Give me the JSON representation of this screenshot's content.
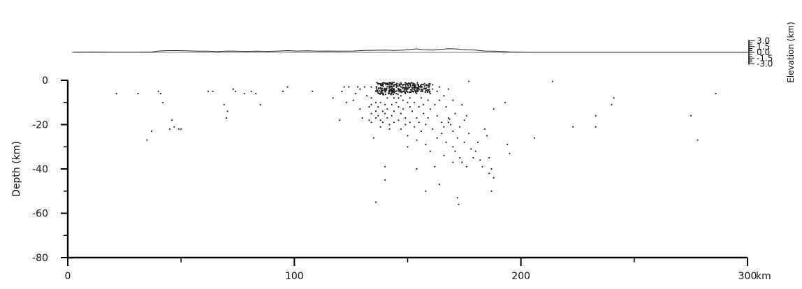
{
  "chart_data": {
    "type": "scatter",
    "title": "",
    "xlabel": "",
    "x_unit": "km",
    "ylabel": "Depth (km)",
    "xlim": [
      0,
      300
    ],
    "ylim": [
      -80,
      0
    ],
    "x_ticks_major": [
      0,
      100,
      200,
      300
    ],
    "x_ticks_minor": [
      50,
      150,
      250
    ],
    "y_ticks_major": [
      0,
      -20,
      -40,
      -60,
      -80
    ],
    "y_ticks_minor": [
      -10,
      -30,
      -50,
      -70
    ],
    "x_tick_labels": [
      "0",
      "100",
      "200",
      "300"
    ],
    "y_tick_labels": [
      "0",
      "-20",
      "-40",
      "-60",
      "-80"
    ],
    "grid": false,
    "legend": "none",
    "point_color": "#222222",
    "elevation": {
      "label": "Elevation (km)",
      "ticks": [
        "3.0",
        "1.5",
        "0.0",
        "-1.5",
        "-3.0"
      ],
      "values": [
        3.0,
        1.5,
        0.0,
        -1.5,
        -3.0
      ],
      "profile": [
        [
          2,
          0.05
        ],
        [
          10,
          0.1
        ],
        [
          20,
          0.05
        ],
        [
          30,
          0.05
        ],
        [
          37,
          0.1
        ],
        [
          40,
          0.35
        ],
        [
          44,
          0.45
        ],
        [
          48,
          0.45
        ],
        [
          52,
          0.4
        ],
        [
          57,
          0.3
        ],
        [
          62,
          0.3
        ],
        [
          66,
          0.2
        ],
        [
          70,
          0.35
        ],
        [
          74,
          0.3
        ],
        [
          78,
          0.25
        ],
        [
          84,
          0.3
        ],
        [
          88,
          0.25
        ],
        [
          93,
          0.35
        ],
        [
          97,
          0.45
        ],
        [
          101,
          0.35
        ],
        [
          106,
          0.4
        ],
        [
          110,
          0.3
        ],
        [
          115,
          0.35
        ],
        [
          120,
          0.3
        ],
        [
          126,
          0.35
        ],
        [
          131,
          0.5
        ],
        [
          136,
          0.55
        ],
        [
          140,
          0.6
        ],
        [
          144,
          0.5
        ],
        [
          148,
          0.6
        ],
        [
          152,
          0.8
        ],
        [
          154,
          0.9
        ],
        [
          157,
          0.7
        ],
        [
          161,
          0.6
        ],
        [
          164,
          0.75
        ],
        [
          168,
          0.95
        ],
        [
          172,
          0.85
        ],
        [
          176,
          0.7
        ],
        [
          180,
          0.6
        ],
        [
          184,
          0.35
        ],
        [
          188,
          0.3
        ],
        [
          192,
          0.2
        ],
        [
          196,
          0.1
        ],
        [
          200,
          0.05
        ],
        [
          205,
          0.0
        ],
        [
          300,
          0.0
        ]
      ]
    },
    "points": [
      [
        21.5,
        -6
      ],
      [
        31,
        -6
      ],
      [
        35,
        -27
      ],
      [
        37,
        -23
      ],
      [
        40,
        -5
      ],
      [
        41,
        -6
      ],
      [
        42,
        -10
      ],
      [
        45,
        -22
      ],
      [
        46,
        -18
      ],
      [
        47,
        -21
      ],
      [
        49,
        -22
      ],
      [
        50,
        -22
      ],
      [
        62,
        -5
      ],
      [
        64,
        -5
      ],
      [
        69,
        -11
      ],
      [
        70,
        -17
      ],
      [
        70.5,
        -14
      ],
      [
        73,
        -4
      ],
      [
        74,
        -5
      ],
      [
        78,
        -6
      ],
      [
        81,
        -5
      ],
      [
        83,
        -6
      ],
      [
        85,
        -11
      ],
      [
        95,
        -5
      ],
      [
        97,
        -3
      ],
      [
        108,
        -5
      ],
      [
        117,
        -8
      ],
      [
        120,
        -18
      ],
      [
        121,
        -5
      ],
      [
        122,
        -3
      ],
      [
        123,
        -10
      ],
      [
        124,
        -3
      ],
      [
        126,
        -9
      ],
      [
        127,
        -6
      ],
      [
        128,
        -3
      ],
      [
        129,
        -4
      ],
      [
        129,
        -13
      ],
      [
        130,
        -17
      ],
      [
        131,
        -3
      ],
      [
        132,
        -7
      ],
      [
        133,
        -12
      ],
      [
        133,
        -18
      ],
      [
        134,
        -3
      ],
      [
        134,
        -8
      ],
      [
        134,
        -11
      ],
      [
        134,
        -15
      ],
      [
        134,
        -19
      ],
      [
        135,
        -26
      ],
      [
        136,
        -5
      ],
      [
        136,
        -10
      ],
      [
        136,
        -14
      ],
      [
        136,
        -17
      ],
      [
        136,
        -55
      ],
      [
        137,
        -12
      ],
      [
        137,
        -16
      ],
      [
        138,
        -6
      ],
      [
        138,
        -10
      ],
      [
        138,
        -18
      ],
      [
        138,
        -21
      ],
      [
        139,
        -14
      ],
      [
        139,
        -19
      ],
      [
        140,
        -5
      ],
      [
        140,
        -11
      ],
      [
        140,
        -15
      ],
      [
        140,
        -39
      ],
      [
        140,
        -45
      ],
      [
        141,
        -8
      ],
      [
        141,
        -13
      ],
      [
        141,
        -17
      ],
      [
        142,
        -6
      ],
      [
        142,
        -20
      ],
      [
        142,
        -22
      ],
      [
        143,
        -3
      ],
      [
        143,
        -11
      ],
      [
        143,
        -16
      ],
      [
        144,
        -4
      ],
      [
        144,
        -8
      ],
      [
        144,
        -14
      ],
      [
        144,
        -19
      ],
      [
        145,
        -2
      ],
      [
        145,
        -6
      ],
      [
        145,
        -10
      ],
      [
        146,
        -4
      ],
      [
        146,
        -8
      ],
      [
        146,
        -12
      ],
      [
        146,
        -18
      ],
      [
        147,
        -3
      ],
      [
        147,
        -7
      ],
      [
        147,
        -15
      ],
      [
        147,
        -22
      ],
      [
        148,
        -5
      ],
      [
        148,
        -9
      ],
      [
        148,
        -13
      ],
      [
        149,
        -2
      ],
      [
        149,
        -6
      ],
      [
        149,
        -17
      ],
      [
        149,
        -20
      ],
      [
        150,
        -4
      ],
      [
        150,
        -10
      ],
      [
        150,
        -25
      ],
      [
        150,
        -30
      ],
      [
        151,
        -2
      ],
      [
        151,
        -8
      ],
      [
        151,
        -12
      ],
      [
        151,
        -19
      ],
      [
        152,
        -5
      ],
      [
        152,
        -14
      ],
      [
        153,
        -3
      ],
      [
        153,
        -10
      ],
      [
        153,
        -21
      ],
      [
        154,
        -6
      ],
      [
        154,
        -17
      ],
      [
        154,
        -27
      ],
      [
        154,
        -40
      ],
      [
        155,
        -3
      ],
      [
        155,
        -12
      ],
      [
        155,
        -19
      ],
      [
        156,
        -5
      ],
      [
        156,
        -8
      ],
      [
        156,
        -23
      ],
      [
        157,
        -2
      ],
      [
        157,
        -11
      ],
      [
        157,
        -15
      ],
      [
        158,
        -4
      ],
      [
        158,
        -20
      ],
      [
        158,
        -29
      ],
      [
        158,
        -50
      ],
      [
        159,
        -3
      ],
      [
        159,
        -9
      ],
      [
        159,
        -17
      ],
      [
        160,
        -6
      ],
      [
        160,
        -13
      ],
      [
        160,
        -32
      ],
      [
        161,
        -2
      ],
      [
        161,
        -4
      ],
      [
        161,
        -22
      ],
      [
        162,
        -11
      ],
      [
        162,
        -39
      ],
      [
        163,
        -5
      ],
      [
        163,
        -16
      ],
      [
        163,
        -26
      ],
      [
        164,
        -3
      ],
      [
        164,
        -9
      ],
      [
        164,
        -47
      ],
      [
        165,
        -19
      ],
      [
        165,
        -24
      ],
      [
        166,
        -7
      ],
      [
        166,
        -21
      ],
      [
        166,
        -34
      ],
      [
        167,
        -12
      ],
      [
        167,
        -28
      ],
      [
        168,
        -4
      ],
      [
        168,
        -17
      ],
      [
        168,
        -19
      ],
      [
        168.5,
        -17.5
      ],
      [
        169,
        -20
      ],
      [
        170,
        -9
      ],
      [
        170,
        -23
      ],
      [
        170,
        -30
      ],
      [
        170,
        -37
      ],
      [
        171,
        -15
      ],
      [
        171,
        -32
      ],
      [
        172,
        -26
      ],
      [
        172,
        -53
      ],
      [
        172.5,
        -56
      ],
      [
        173,
        -21
      ],
      [
        173,
        -35
      ],
      [
        174,
        -11
      ],
      [
        174,
        -37
      ],
      [
        175,
        -18
      ],
      [
        175,
        -28
      ],
      [
        176,
        -16
      ],
      [
        176,
        -39
      ],
      [
        177,
        -0.5
      ],
      [
        177,
        -24
      ],
      [
        178,
        -31
      ],
      [
        179,
        -35
      ],
      [
        180,
        -32
      ],
      [
        181,
        -28
      ],
      [
        182,
        -36
      ],
      [
        183,
        -39
      ],
      [
        184,
        -22
      ],
      [
        185,
        -25
      ],
      [
        186,
        -35
      ],
      [
        186,
        -42
      ],
      [
        187,
        -40
      ],
      [
        187,
        -50
      ],
      [
        188,
        -13
      ],
      [
        188,
        -44
      ],
      [
        193,
        -10
      ],
      [
        194,
        -29
      ],
      [
        195,
        -33
      ],
      [
        206,
        -26
      ],
      [
        214,
        -0.5
      ],
      [
        223,
        -21
      ],
      [
        233,
        -16
      ],
      [
        233,
        -21
      ],
      [
        240,
        -11
      ],
      [
        241,
        -8
      ],
      [
        275,
        -16
      ],
      [
        278,
        -27
      ],
      [
        286,
        -6
      ]
    ],
    "dense_clusters": [
      {
        "x": [
          136,
          146
        ],
        "y": [
          -6.5,
          -1
        ],
        "count": 150
      },
      {
        "x": [
          146,
          155
        ],
        "y": [
          -5.5,
          -1
        ],
        "count": 110
      },
      {
        "x": [
          155,
          160
        ],
        "y": [
          -5.5,
          -1.5
        ],
        "count": 40
      }
    ]
  }
}
